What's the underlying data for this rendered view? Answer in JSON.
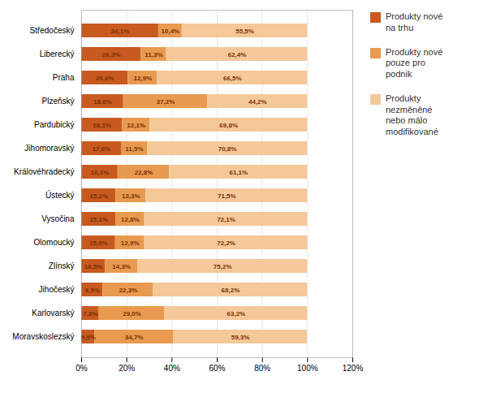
{
  "chart_data": {
    "type": "bar",
    "orientation": "horizontal",
    "stacked": true,
    "data_labels": true,
    "grid": true,
    "legend": "right",
    "categories": [
      "Středočeský",
      "Liberecký",
      "Praha",
      "Plzeňský",
      "Pardubický",
      "Jihomoravský",
      "Královéhradecký",
      "Ústecký",
      "Vysočina",
      "Olomoucký",
      "Zlínský",
      "Jihočeský",
      "Karlovarský",
      "Moravskoslezský"
    ],
    "series": [
      {
        "name": "Produkty nové\nna trhu",
        "color": "#C85A20",
        "values": [
          34.1,
          26.3,
          20.6,
          18.6,
          18.1,
          17.6,
          16.1,
          15.2,
          15.1,
          15.0,
          10.5,
          9.5,
          7.8,
          5.9
        ],
        "value_labels": [
          "34,1%",
          "26,3%",
          "20,6%",
          "18,6%",
          "18,1%",
          "17,6%",
          "16,1%",
          "15,2%",
          "15,1%",
          "15,0%",
          "10,5%",
          "9,5%",
          "7,8%",
          "5,9%"
        ]
      },
      {
        "name": "Produkty nové\npouze pro\npodnik",
        "color": "#E89A50",
        "values": [
          10.4,
          11.3,
          12.9,
          37.2,
          12.1,
          11.5,
          22.8,
          13.3,
          12.8,
          12.9,
          14.3,
          22.3,
          29.0,
          34.7
        ],
        "value_labels": [
          "10,4%",
          "11,3%",
          "12,9%",
          "37,2%",
          "12,1%",
          "11,5%",
          "22,8%",
          "13,3%",
          "12,8%",
          "12,9%",
          "14,3%",
          "22,3%",
          "29,0%",
          "34,7%"
        ]
      },
      {
        "name": "Produkty\nnezměněné\nnebo málo\nmodifikované",
        "color": "#F5C89A",
        "values": [
          55.5,
          62.4,
          66.5,
          44.2,
          69.8,
          70.8,
          61.1,
          71.5,
          72.1,
          72.2,
          75.2,
          68.2,
          63.2,
          59.3
        ],
        "value_labels": [
          "55,5%",
          "62,4%",
          "66,5%",
          "44,2%",
          "69,8%",
          "70,8%",
          "61,1%",
          "71,5%",
          "72,1%",
          "72,2%",
          "75,2%",
          "68,2%",
          "63,2%",
          "59,3%"
        ]
      }
    ],
    "xlim": [
      0,
      120
    ],
    "xticks": [
      {
        "value": 0,
        "label": "0%"
      },
      {
        "value": 20,
        "label": "20%"
      },
      {
        "value": 40,
        "label": "40%"
      },
      {
        "value": 60,
        "label": "60%"
      },
      {
        "value": 80,
        "label": "80%"
      },
      {
        "value": 100,
        "label": "100%"
      },
      {
        "value": 120,
        "label": "120%"
      }
    ]
  }
}
